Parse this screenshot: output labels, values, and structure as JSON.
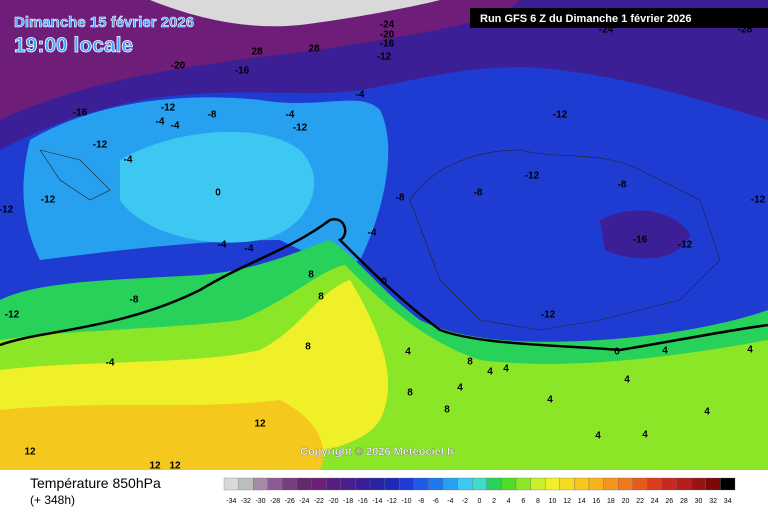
{
  "header": {
    "date": "Dimanche 15 février 2026",
    "time": "19:00 locale",
    "run": "Run GFS 6 Z du Dimanche 1 février 2026"
  },
  "copyright": "Copyright © 2026 Meteociel.fr",
  "footer": {
    "title": "Température 850hPa",
    "lead": "(+ 348h)"
  },
  "colorbar": {
    "values": [
      -34,
      -32,
      -30,
      -28,
      -26,
      -24,
      -22,
      -20,
      -18,
      -16,
      -14,
      -12,
      -10,
      -8,
      -6,
      -4,
      -2,
      0,
      2,
      4,
      6,
      8,
      10,
      12,
      14,
      16,
      18,
      20,
      22,
      24,
      26,
      28,
      30,
      32,
      34
    ],
    "colors": [
      "#d9d9d9",
      "#bdbdbd",
      "#a58aa8",
      "#8c5a96",
      "#7a3c82",
      "#64286e",
      "#6e1e78",
      "#5a1e82",
      "#4a1e8c",
      "#3c1e96",
      "#2a24a5",
      "#1e2ab4",
      "#1e3cd2",
      "#1e5ae6",
      "#1e78f0",
      "#28a0f0",
      "#3cc8f0",
      "#3cdcc8",
      "#28d25a",
      "#50dc28",
      "#8ce628",
      "#c8f028",
      "#f0f028",
      "#f5dc1e",
      "#f5c81e",
      "#f5b41e",
      "#f0961e",
      "#f0781e",
      "#e65a1e",
      "#dc3c1e",
      "#c8281e",
      "#b41e1e",
      "#961414",
      "#7a0a0a",
      "#000000"
    ]
  },
  "contour_labels": [
    "-20",
    "-12",
    "-16",
    "-12",
    "-4",
    "-8",
    "-4",
    "-4",
    "-12",
    "-4",
    "-4",
    "-12",
    "0",
    "-4",
    "-4",
    "-8",
    "-12",
    "-4",
    "-8",
    "0",
    "8",
    "8",
    "8",
    "-4",
    "-8",
    "-12",
    "-8",
    "-12",
    "-12",
    "-16",
    "-12",
    "-12",
    "-12",
    "4",
    "8",
    "4",
    "8",
    "4",
    "4",
    "4",
    "8",
    "4",
    "12",
    "12",
    "12",
    "12",
    "4",
    "0",
    "4",
    "4",
    "4",
    "-24",
    "-20",
    "-16",
    "-12",
    "28",
    "28",
    "-16",
    "4",
    "-24",
    "-28"
  ]
}
